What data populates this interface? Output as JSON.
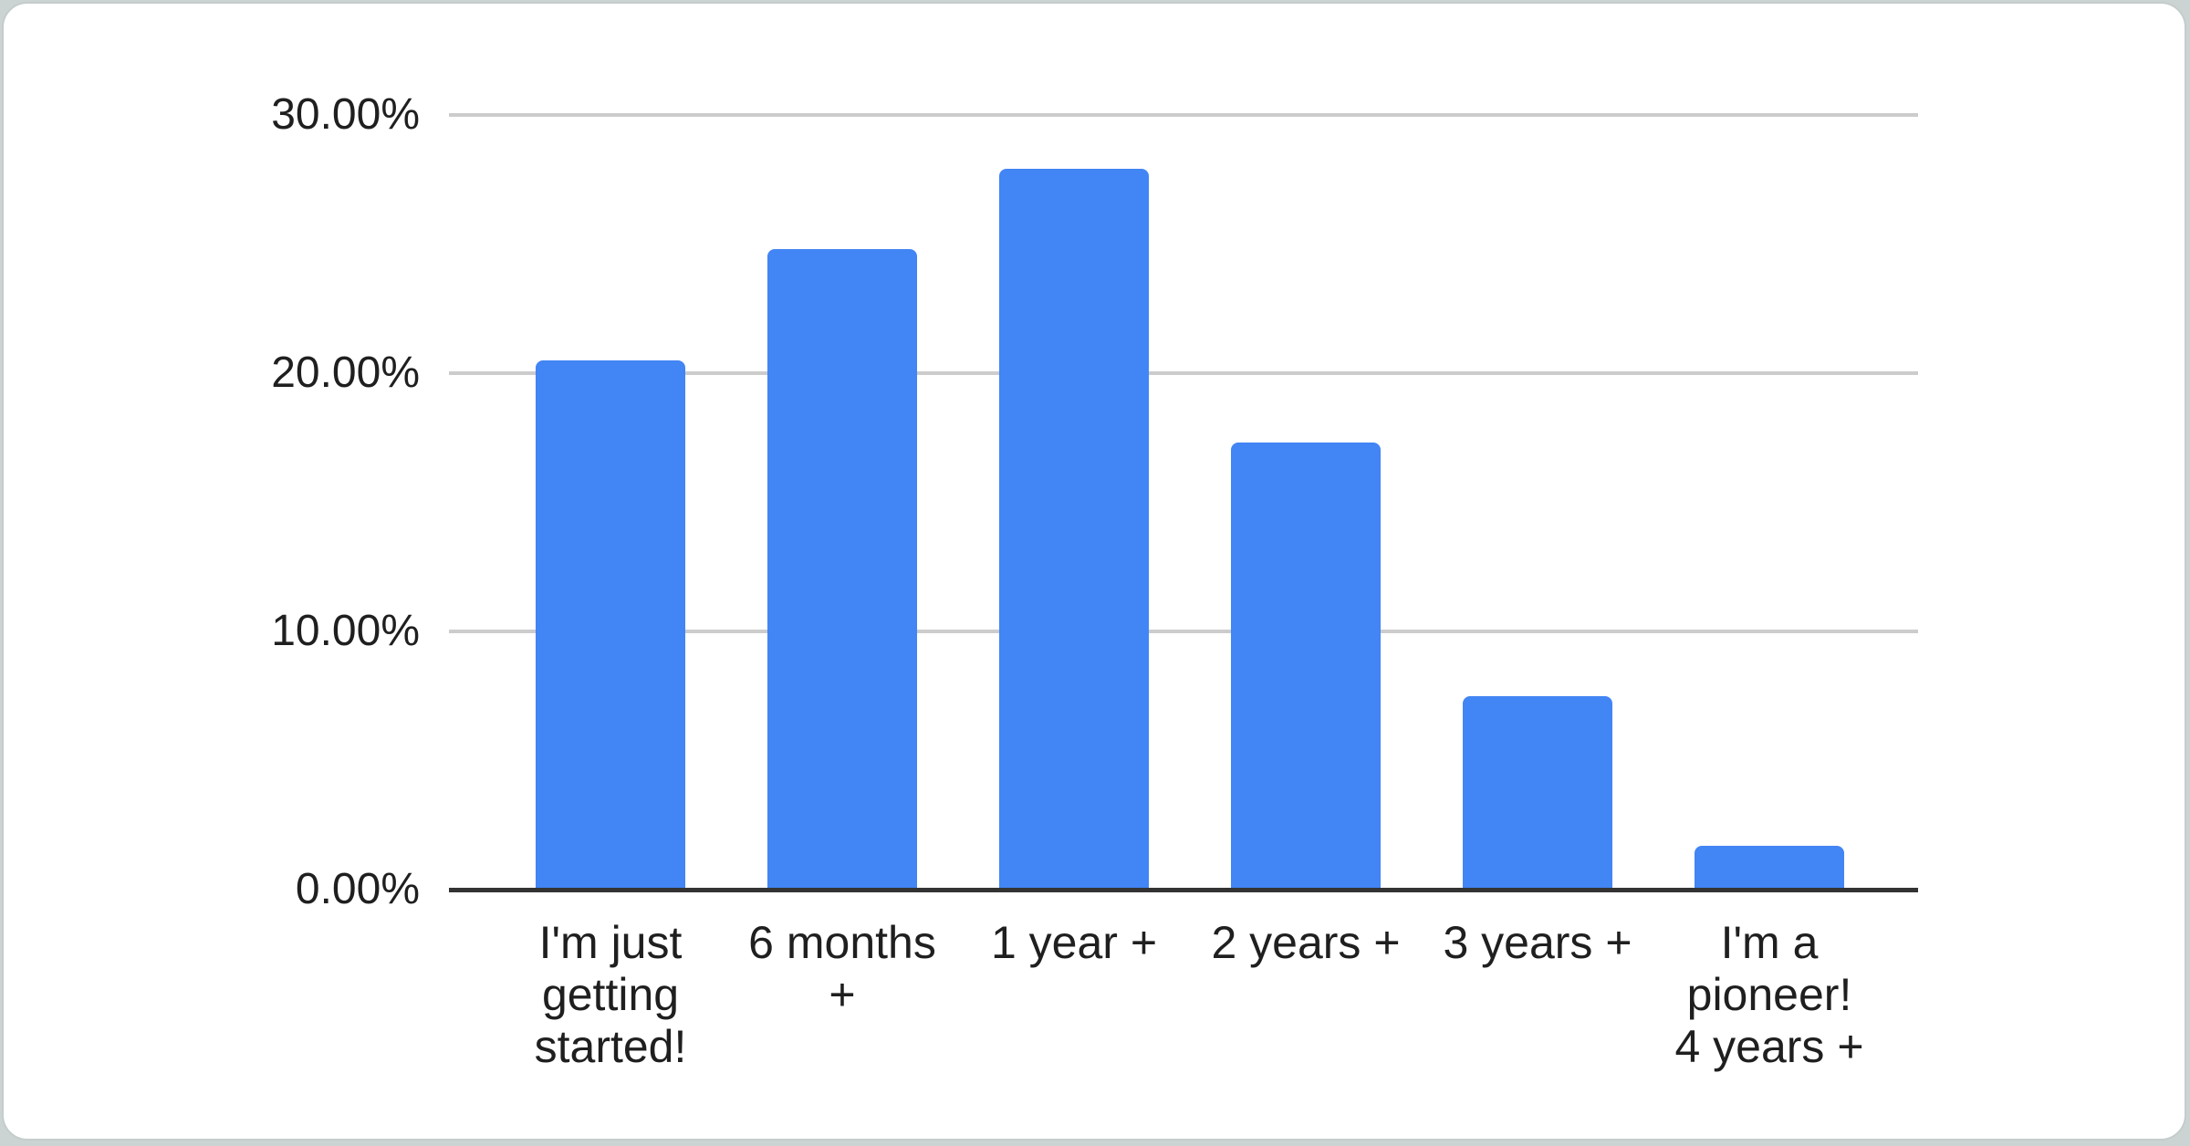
{
  "chart_data": {
    "type": "bar",
    "title": "",
    "xlabel": "",
    "ylabel": "",
    "categories": [
      "I'm just getting started!",
      "6 months +",
      "1 year +",
      "2 years +",
      "3 years +",
      "I'm a pioneer! 4 years +"
    ],
    "values": [
      20.5,
      24.8,
      27.9,
      17.3,
      7.5,
      1.7
    ],
    "ylim": [
      0,
      30
    ],
    "yticks": [
      {
        "label": "0.00%",
        "value": 0
      },
      {
        "label": "10.00%",
        "value": 10
      },
      {
        "label": "20.00%",
        "value": 20
      },
      {
        "label": "30.00%",
        "value": 30
      }
    ],
    "grid": true,
    "legend": "none",
    "colors": {
      "bar": "#4285f4",
      "gridline": "#cccccc",
      "axis": "#333333",
      "tick_text": "#1f1f1f",
      "card_background": "#ffffff",
      "page_background": "#ccd3d3"
    }
  }
}
